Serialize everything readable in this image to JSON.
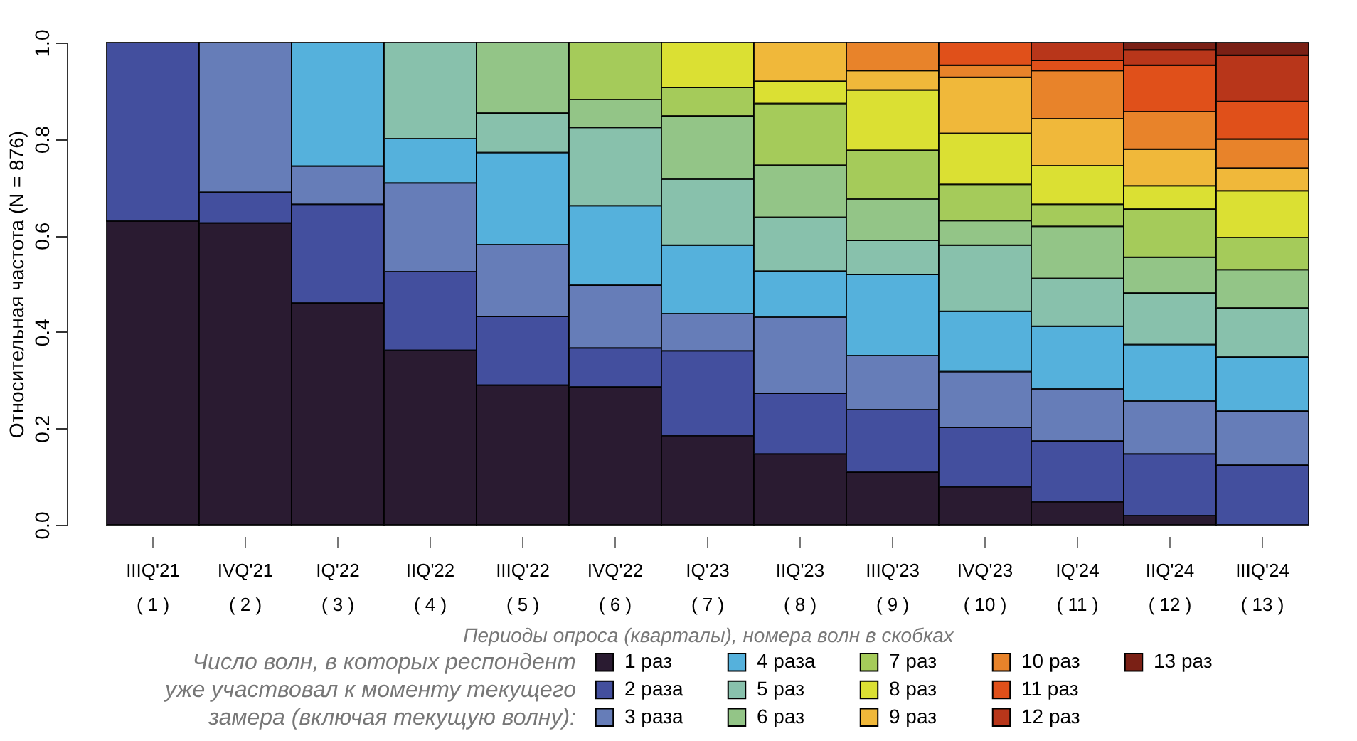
{
  "chart_data": {
    "type": "bar",
    "stacked": true,
    "categories": [
      "IIIQ'21\n( 1 )",
      "IVQ'21\n( 2 )",
      "IQ'22\n( 3 )",
      "IIQ'22\n( 4 )",
      "IIIQ'22\n( 5 )",
      "IVQ'22\n( 6 )",
      "IQ'23\n( 7 )",
      "IIQ'23\n( 8 )",
      "IIIQ'23\n( 9 )",
      "IVQ'23\n( 10 )",
      "IQ'24\n( 11 )",
      "IIQ'24\n( 12 )",
      "IIIQ'24\n( 13 )"
    ],
    "series": [
      {
        "name": "1 раз",
        "color": "#2a1b31",
        "values": [
          0.63,
          0.626,
          0.46,
          0.362,
          0.29,
          0.286,
          0.185,
          0.147,
          0.109,
          0.079,
          0.048,
          0.019,
          null
        ]
      },
      {
        "name": "2 раза",
        "color": "#434f9e",
        "values": [
          0.37,
          0.064,
          0.205,
          0.163,
          0.142,
          0.081,
          0.176,
          0.126,
          0.13,
          0.123,
          0.126,
          0.128,
          0.124
        ]
      },
      {
        "name": "3 раза",
        "color": "#667db8",
        "values": [
          null,
          0.31,
          0.079,
          0.184,
          0.149,
          0.13,
          0.077,
          0.158,
          0.112,
          0.116,
          0.108,
          0.11,
          0.112
        ]
      },
      {
        "name": "4 раза",
        "color": "#55b1dc",
        "values": [
          null,
          null,
          0.256,
          0.092,
          0.191,
          0.165,
          0.142,
          0.095,
          0.168,
          0.125,
          0.13,
          0.117,
          0.112
        ]
      },
      {
        "name": "5 раз",
        "color": "#88c1ac",
        "values": [
          null,
          null,
          null,
          0.199,
          0.082,
          0.162,
          0.137,
          0.112,
          0.071,
          0.137,
          0.099,
          0.107,
          0.102
        ]
      },
      {
        "name": "6 раз",
        "color": "#93c587",
        "values": [
          null,
          null,
          null,
          null,
          0.146,
          0.058,
          0.131,
          0.108,
          0.086,
          0.051,
          0.108,
          0.074,
          0.079
        ]
      },
      {
        "name": "7 раз",
        "color": "#a5cb5a",
        "values": [
          null,
          null,
          null,
          null,
          null,
          0.118,
          0.059,
          0.128,
          0.101,
          0.075,
          0.046,
          0.1,
          0.067
        ]
      },
      {
        "name": "8 раз",
        "color": "#dbe033",
        "values": [
          null,
          null,
          null,
          null,
          null,
          null,
          0.093,
          0.046,
          0.125,
          0.106,
          0.08,
          0.048,
          0.097
        ]
      },
      {
        "name": "9 раз",
        "color": "#f0b83a",
        "values": [
          null,
          null,
          null,
          null,
          null,
          null,
          null,
          0.08,
          0.04,
          0.116,
          0.097,
          0.076,
          0.047
        ]
      },
      {
        "name": "10 раз",
        "color": "#e8832a",
        "values": [
          null,
          null,
          null,
          null,
          null,
          null,
          null,
          null,
          0.058,
          0.025,
          0.1,
          0.078,
          0.06
        ]
      },
      {
        "name": "11 раз",
        "color": "#e0501a",
        "values": [
          null,
          null,
          null,
          null,
          null,
          null,
          null,
          null,
          null,
          0.047,
          0.021,
          0.096,
          0.078
        ]
      },
      {
        "name": "12 раз",
        "color": "#b8361a",
        "values": [
          null,
          null,
          null,
          null,
          null,
          null,
          null,
          null,
          null,
          null,
          0.037,
          0.032,
          0.096
        ]
      },
      {
        "name": "13 раз",
        "color": "#7a2015",
        "values": [
          null,
          null,
          null,
          null,
          null,
          null,
          null,
          null,
          null,
          null,
          null,
          0.015,
          0.026
        ]
      }
    ],
    "ylim": [
      0,
      1
    ],
    "yticks": [
      {
        "value": 0,
        "label": "0.0"
      },
      {
        "value": 0.2,
        "label": "0.2"
      },
      {
        "value": 0.4,
        "label": "0.4"
      },
      {
        "value": 0.6,
        "label": "0.6"
      },
      {
        "value": 0.8,
        "label": "0.8"
      },
      {
        "value": 1,
        "label": "1.0"
      }
    ],
    "ylabel": "Относительная частота (N = 876)",
    "xlabel": "Периоды опроса (кварталы), номера волн в скобках",
    "legend": "bottom",
    "legend_title": "Число волн, в которых респондент уже участвовал к моменту текущего замера (включая текущую волну):"
  }
}
